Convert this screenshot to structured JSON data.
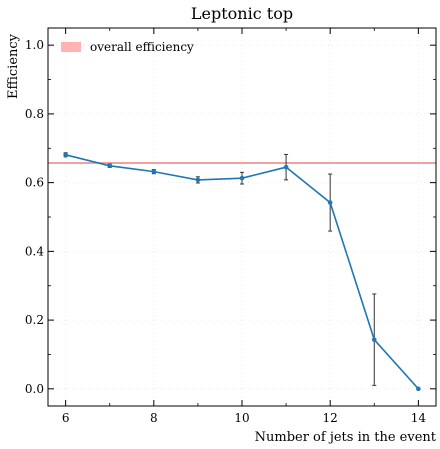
{
  "chart_data": {
    "type": "line",
    "title": "Leptonic top",
    "xlabel": "Number of jets in the event",
    "ylabel": "Efficiency",
    "xlim": [
      5.6,
      14.4
    ],
    "ylim": [
      -0.05,
      1.05
    ],
    "xticks": [
      6,
      8,
      10,
      12,
      14
    ],
    "xtick_labels": [
      "6",
      "8",
      "10",
      "12",
      "14"
    ],
    "yticks": [
      0.0,
      0.2,
      0.4,
      0.6,
      0.8,
      1.0
    ],
    "ytick_labels": [
      "0.0",
      "0.2",
      "0.4",
      "0.6",
      "0.8",
      "1.0"
    ],
    "grid": true,
    "legend_position": "top-left",
    "series": [
      {
        "color": "#1f77b4",
        "x": [
          6,
          7,
          8,
          9,
          10,
          11,
          12,
          13,
          14
        ],
        "y": [
          0.681,
          0.649,
          0.632,
          0.608,
          0.613,
          0.645,
          0.542,
          0.143,
          0.0
        ],
        "yerr": [
          0.006,
          0.005,
          0.006,
          0.009,
          0.017,
          0.037,
          0.083,
          0.133,
          0.0
        ]
      }
    ],
    "reference_line": {
      "label": "overall efficiency",
      "y": 0.657,
      "color": "#f08080",
      "legend_patch_color": "#ffb3b3"
    }
  }
}
